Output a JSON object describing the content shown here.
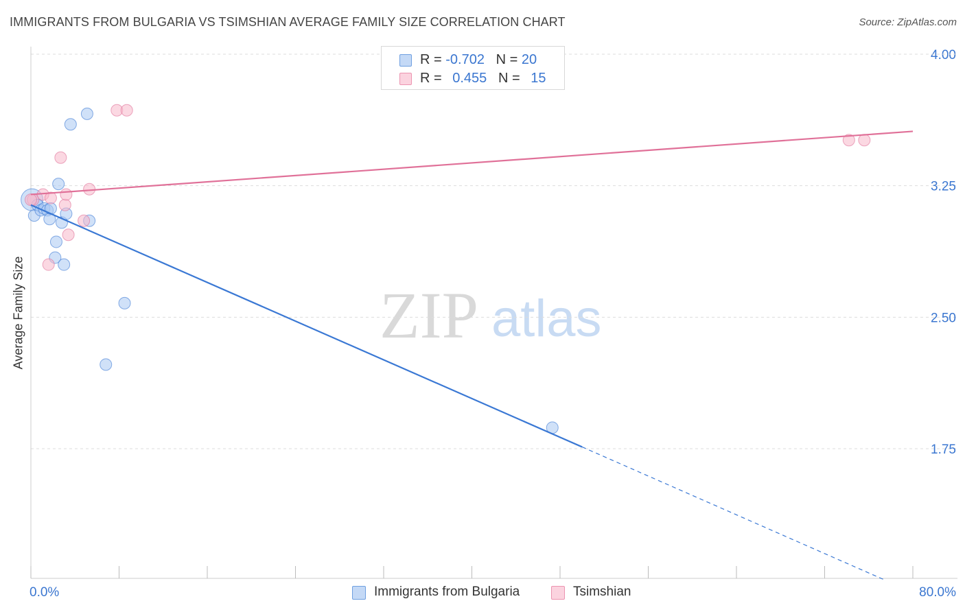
{
  "title": "IMMIGRANTS FROM BULGARIA VS TSIMSHIAN AVERAGE FAMILY SIZE CORRELATION CHART",
  "source": "Source: ZipAtlas.com",
  "watermark": {
    "zip": "ZIP",
    "atlas": "atlas"
  },
  "legend": {
    "rows": [
      {
        "text": "R = -0.702   N = 20",
        "r_label": "R = ",
        "r_value": "-0.702",
        "n_label": "N = ",
        "n_value": "20",
        "color": "#a9c8f3"
      },
      {
        "text": "R =  0.455   N =  15",
        "r_label": "R = ",
        "r_value": "0.455",
        "n_label": "N = ",
        "n_value": "15",
        "color": "#f7b8cb"
      }
    ]
  },
  "bottom_legend": [
    {
      "label": "Immigrants from Bulgaria",
      "color": "#a9c8f3"
    },
    {
      "label": "Tsimshian",
      "color": "#f7b8cb"
    }
  ],
  "chart_data": {
    "type": "scatter",
    "title": "IMMIGRANTS FROM BULGARIA VS TSIMSHIAN AVERAGE FAMILY SIZE CORRELATION CHART",
    "xlabel": "",
    "ylabel": "Average Family Size",
    "xlim": [
      0,
      80
    ],
    "ylim": [
      1.0,
      4.15
    ],
    "x_tick_labels": [
      "0.0%",
      "80.0%"
    ],
    "y_ticks": [
      1.75,
      2.5,
      3.25,
      4.0
    ],
    "y_tick_labels": [
      "1.75",
      "2.50",
      "3.25",
      "4.00"
    ],
    "grid": "horizontal dashed",
    "series": [
      {
        "name": "Immigrants from Bulgaria",
        "color": "#3a78d4",
        "fill": "#a9c8f3",
        "points": [
          {
            "x": 0.1,
            "y": 3.17,
            "size": "large"
          },
          {
            "x": 0.3,
            "y": 3.08
          },
          {
            "x": 0.6,
            "y": 3.14
          },
          {
            "x": 0.9,
            "y": 3.11
          },
          {
            "x": 1.2,
            "y": 3.12
          },
          {
            "x": 1.5,
            "y": 3.11
          },
          {
            "x": 1.7,
            "y": 3.06
          },
          {
            "x": 1.8,
            "y": 3.12
          },
          {
            "x": 2.2,
            "y": 2.84
          },
          {
            "x": 2.3,
            "y": 2.93
          },
          {
            "x": 2.5,
            "y": 3.26
          },
          {
            "x": 2.8,
            "y": 3.04
          },
          {
            "x": 3.0,
            "y": 2.8
          },
          {
            "x": 3.2,
            "y": 3.09
          },
          {
            "x": 3.6,
            "y": 3.6
          },
          {
            "x": 5.1,
            "y": 3.66
          },
          {
            "x": 5.3,
            "y": 3.05
          },
          {
            "x": 6.8,
            "y": 2.23
          },
          {
            "x": 8.5,
            "y": 2.58
          },
          {
            "x": 47.3,
            "y": 1.87
          }
        ],
        "trend": {
          "x0": 0,
          "y0": 3.14,
          "x1": 50,
          "y1": 1.76,
          "dashed_to": {
            "x": 77.5,
            "y": 1.0
          }
        }
      },
      {
        "name": "Tsimshian",
        "color": "#e07098",
        "fill": "#f7b8cb",
        "points": [
          {
            "x": 0.2,
            "y": 3.17
          },
          {
            "x": 1.1,
            "y": 3.2
          },
          {
            "x": 1.6,
            "y": 2.8
          },
          {
            "x": 1.8,
            "y": 3.18
          },
          {
            "x": 2.7,
            "y": 3.41
          },
          {
            "x": 3.1,
            "y": 3.14
          },
          {
            "x": 3.2,
            "y": 3.2
          },
          {
            "x": 3.4,
            "y": 2.97
          },
          {
            "x": 4.8,
            "y": 3.05
          },
          {
            "x": 5.3,
            "y": 3.23
          },
          {
            "x": 7.8,
            "y": 3.68
          },
          {
            "x": 8.7,
            "y": 3.68
          },
          {
            "x": 74.2,
            "y": 3.51
          },
          {
            "x": 75.6,
            "y": 3.51
          },
          {
            "x": 0.0,
            "y": 3.17
          }
        ],
        "trend": {
          "x0": 0,
          "y0": 3.2,
          "x1": 80,
          "y1": 3.56
        }
      }
    ]
  }
}
